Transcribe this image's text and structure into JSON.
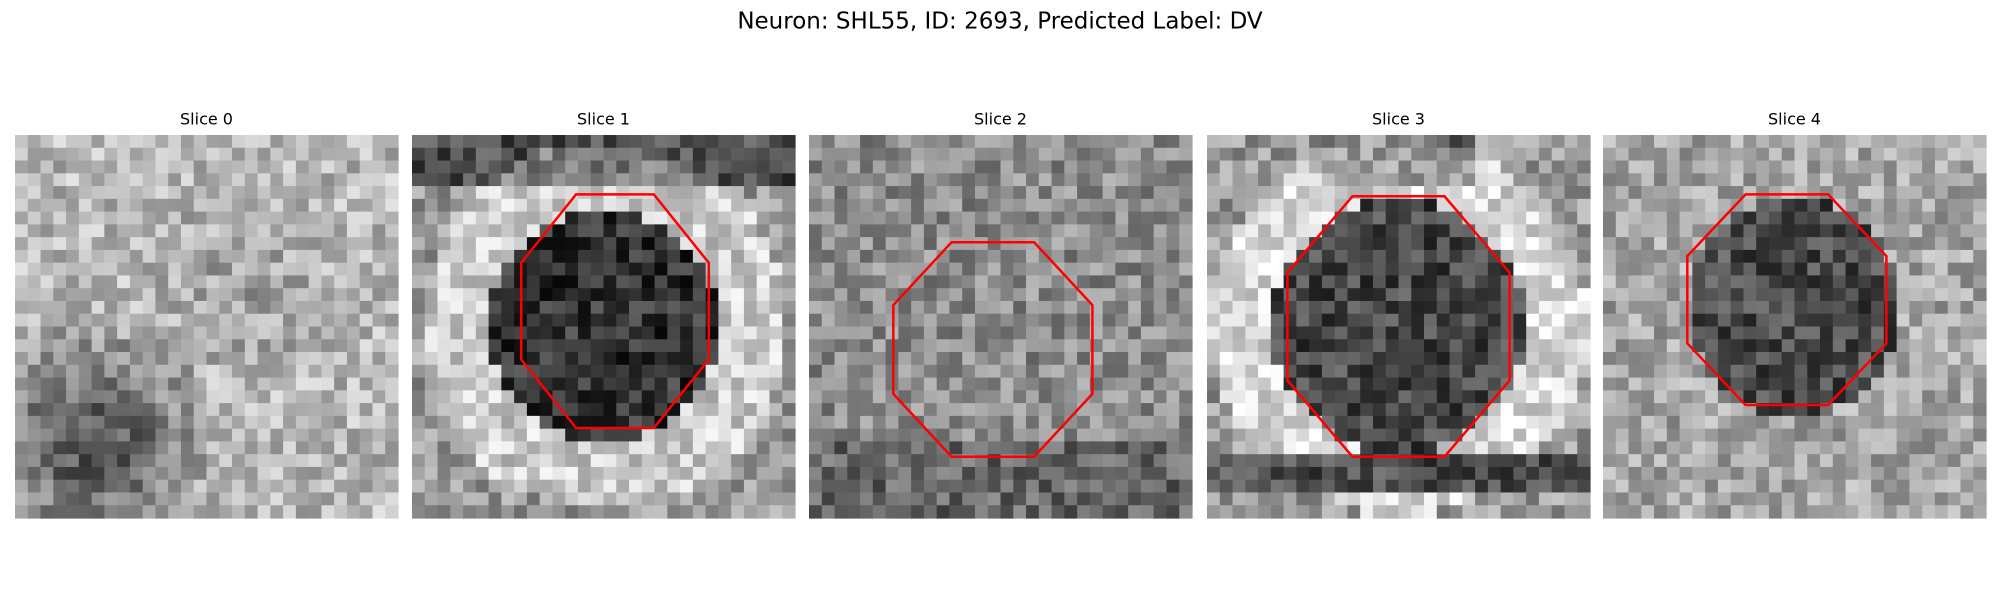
{
  "title": "Neuron: SHL55, ID: 2693, Predicted Label: DV",
  "panels": [
    {
      "title": "Slice 0"
    },
    {
      "title": "Slice 1"
    },
    {
      "title": "Slice 2"
    },
    {
      "title": "Slice 3"
    },
    {
      "title": "Slice 4"
    }
  ]
}
